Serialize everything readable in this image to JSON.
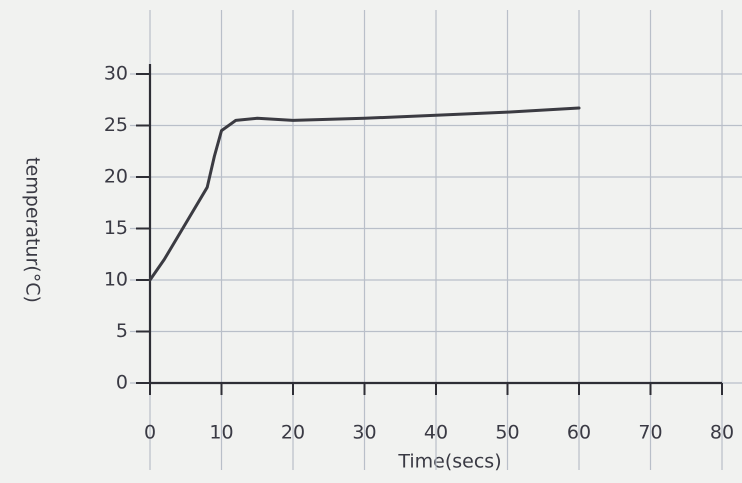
{
  "chart_data": {
    "type": "line",
    "x_label": "Time(secs)",
    "y_label": "temperatur(°C)",
    "x": [
      0,
      2,
      5,
      8,
      9,
      10,
      12,
      15,
      20,
      30,
      40,
      50,
      60
    ],
    "series": [
      {
        "color": "#3b3b42",
        "values": [
          10,
          12,
          15.5,
          19,
          22,
          24.5,
          25.5,
          25.7,
          25.5,
          25.7,
          26,
          26.3,
          26.7
        ]
      }
    ],
    "xlim": [
      0,
      80
    ],
    "xticks": [
      0,
      10,
      20,
      30,
      40,
      50,
      60,
      70,
      80
    ],
    "ylim": [
      0,
      30
    ],
    "yticks": [
      0,
      5,
      10,
      15,
      20,
      25,
      30
    ],
    "grid": true
  }
}
